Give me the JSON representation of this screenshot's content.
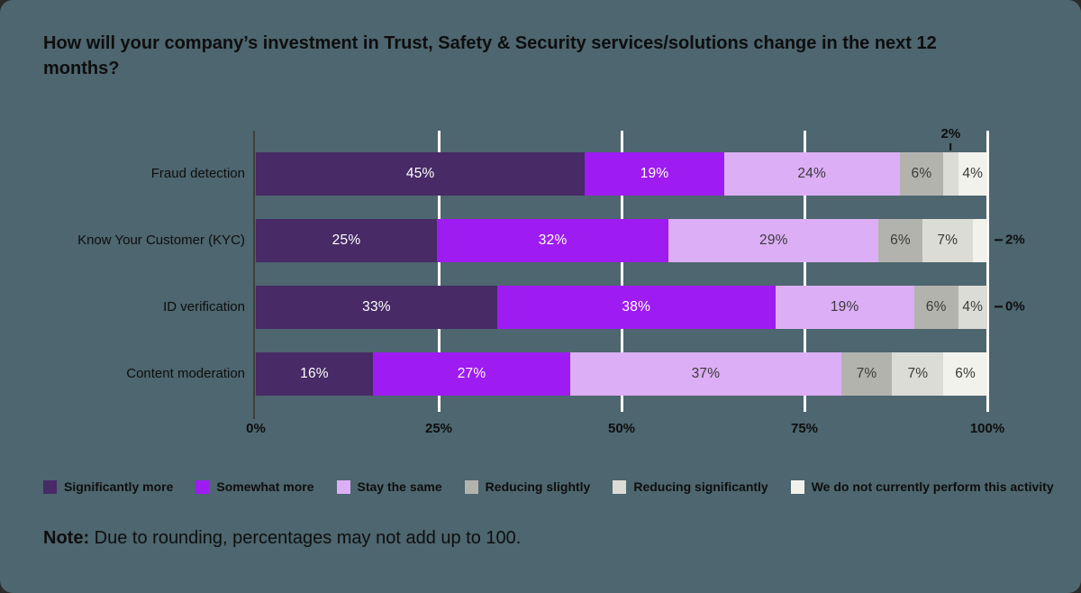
{
  "theme": {
    "background": "#4d666f",
    "text": "#0e0e0e",
    "gridline": "#ffffff",
    "axis_line": "#3f3f3f"
  },
  "note_prefix": "Note:",
  "chart_data": {
    "type": "bar",
    "orientation": "horizontal_stacked",
    "title": "How will your company’s investment in Trust, Safety & Security services/solutions change in the next 12 months?",
    "categories": [
      "Fraud detection",
      "Know Your Customer (KYC)",
      "ID verification",
      "Content moderation"
    ],
    "series": [
      {
        "name": "Significantly more",
        "color": "#472a66",
        "label_color": "#ffffff",
        "values": [
          45,
          25,
          33,
          16
        ]
      },
      {
        "name": "Somewhat more",
        "color": "#9e1cf2",
        "label_color": "#ffffff",
        "values": [
          19,
          32,
          38,
          27
        ]
      },
      {
        "name": "Stay the same",
        "color": "#dcaef5",
        "label_color": "#3a3a3a",
        "values": [
          24,
          29,
          19,
          37
        ]
      },
      {
        "name": "Reducing slightly",
        "color": "#b3b3ae",
        "label_color": "#3a3a3a",
        "values": [
          6,
          6,
          6,
          7
        ]
      },
      {
        "name": "Reducing significantly",
        "color": "#dcdcd6",
        "label_color": "#3a3a3a",
        "values": [
          2,
          7,
          4,
          7
        ]
      },
      {
        "name": "We do not currently perform this activity",
        "color": "#f2f2ec",
        "label_color": "#3a3a3a",
        "values": [
          4,
          2,
          0,
          6
        ]
      }
    ],
    "callouts": [
      {
        "category_index": 0,
        "series_index": 4,
        "label": "2%",
        "position": "above"
      },
      {
        "category_index": 1,
        "series_index": 5,
        "label": "2%",
        "position": "right"
      },
      {
        "category_index": 2,
        "series_index": 5,
        "label": "0%",
        "position": "right"
      }
    ],
    "x_ticks": [
      "0%",
      "25%",
      "50%",
      "75%",
      "100%"
    ],
    "xlim": [
      0,
      100
    ],
    "grid": true,
    "legend_position": "bottom",
    "note": "Due to rounding, percentages may not add up to 100."
  }
}
